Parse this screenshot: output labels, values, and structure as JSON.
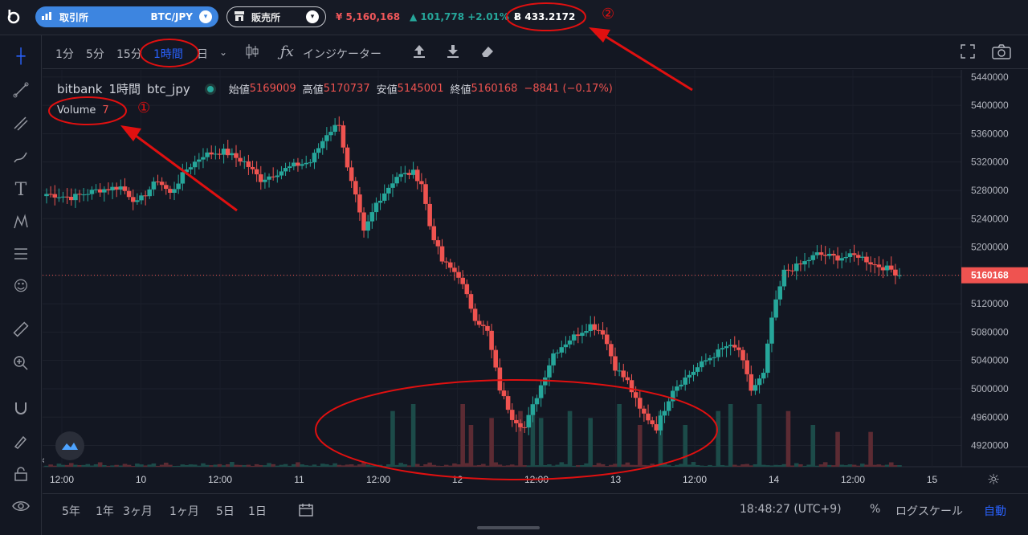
{
  "topbar": {
    "exchange_label": "取引所",
    "pair": "BTC/JPY",
    "shop_label": "販売所",
    "price": "¥ 5,160,168",
    "change": "101,778 +2.01%",
    "btc_balance": "433.2172",
    "btc_symbol": "Ƀ"
  },
  "toolbar": {
    "intervals": [
      "1分",
      "5分",
      "15分",
      "1時間",
      "日"
    ],
    "active_interval": "1時間",
    "indicator_label": "インジケーター"
  },
  "legend": {
    "exchange": "bitbank",
    "interval": "1時間",
    "symbol": "btc_jpy",
    "open_label": "始値",
    "open": "5169009",
    "high_label": "高値",
    "high": "5170737",
    "low_label": "安値",
    "low": "5145001",
    "close_label": "終値",
    "close": "5160168",
    "change": "−8841 (−0.17%)",
    "volume_label": "Volume",
    "volume_value": "7"
  },
  "annotations": {
    "one": "①",
    "two": "②"
  },
  "bottom": {
    "ranges": [
      "5年",
      "1年",
      "3ヶ月",
      "1ヶ月",
      "5日",
      "1日"
    ],
    "time": "18:48:27 (UTC+9)",
    "percent": "%",
    "log_label": "ログスケール",
    "auto_label": "自動"
  },
  "colors": {
    "up": "#26a69a",
    "down": "#ef5350",
    "annotation": "#e01010",
    "accent": "#2962ff"
  },
  "chart_data": {
    "type": "candlestick",
    "ylim": [
      4890000,
      5450000
    ],
    "y_ticks": [
      5440000,
      5400000,
      5360000,
      5320000,
      5280000,
      5240000,
      5200000,
      5160000,
      5120000,
      5080000,
      5040000,
      5000000,
      4960000,
      4920000
    ],
    "x_tick_labels": [
      "12:00",
      "10",
      "12:00",
      "11",
      "12:00",
      "12",
      "12:00",
      "13",
      "12:00",
      "14",
      "12:00",
      "15"
    ],
    "last_price": 5160168,
    "anchors": [
      [
        0,
        5275000
      ],
      [
        6,
        5270000
      ],
      [
        12,
        5280000
      ],
      [
        18,
        5285000
      ],
      [
        22,
        5262000
      ],
      [
        27,
        5295000
      ],
      [
        30,
        5275000
      ],
      [
        34,
        5310000
      ],
      [
        38,
        5330000
      ],
      [
        43,
        5335000
      ],
      [
        48,
        5320000
      ],
      [
        52,
        5295000
      ],
      [
        56,
        5305000
      ],
      [
        60,
        5315000
      ],
      [
        64,
        5320000
      ],
      [
        68,
        5360000
      ],
      [
        71,
        5375000
      ],
      [
        73,
        5310000
      ],
      [
        75,
        5270000
      ],
      [
        77,
        5220000
      ],
      [
        80,
        5262000
      ],
      [
        85,
        5300000
      ],
      [
        89,
        5305000
      ],
      [
        91,
        5290000
      ],
      [
        93,
        5230000
      ],
      [
        96,
        5180000
      ],
      [
        100,
        5160000
      ],
      [
        104,
        5100000
      ],
      [
        107,
        5080000
      ],
      [
        110,
        5000000
      ],
      [
        113,
        4960000
      ],
      [
        116,
        4945000
      ],
      [
        119,
        4990000
      ],
      [
        123,
        5050000
      ],
      [
        127,
        5070000
      ],
      [
        132,
        5090000
      ],
      [
        135,
        5080000
      ],
      [
        138,
        5030000
      ],
      [
        141,
        5010000
      ],
      [
        144,
        4970000
      ],
      [
        148,
        4945000
      ],
      [
        152,
        5000000
      ],
      [
        156,
        5020000
      ],
      [
        160,
        5040000
      ],
      [
        165,
        5060000
      ],
      [
        168,
        5055000
      ],
      [
        171,
        4998000
      ],
      [
        174,
        5020000
      ],
      [
        176,
        5100000
      ],
      [
        179,
        5165000
      ],
      [
        183,
        5175000
      ],
      [
        187,
        5190000
      ],
      [
        192,
        5185000
      ],
      [
        197,
        5188000
      ],
      [
        201,
        5175000
      ],
      [
        205,
        5168000
      ],
      [
        207,
        5160000
      ]
    ],
    "volume_pattern": [
      1,
      2,
      1,
      3,
      2,
      1,
      4,
      2,
      1,
      2,
      3,
      1,
      2,
      5,
      2,
      1
    ],
    "volume_peaks": [
      [
        84,
        8
      ],
      [
        89,
        9
      ],
      [
        101,
        9
      ],
      [
        103,
        6
      ],
      [
        108,
        7
      ],
      [
        115,
        8
      ],
      [
        118,
        9
      ],
      [
        120,
        7
      ],
      [
        127,
        8
      ],
      [
        132,
        7
      ],
      [
        139,
        9
      ],
      [
        144,
        6
      ],
      [
        149,
        8
      ],
      [
        155,
        6
      ],
      [
        163,
        8
      ],
      [
        166,
        9
      ],
      [
        173,
        9
      ],
      [
        180,
        8
      ],
      [
        186,
        6
      ],
      [
        192,
        5
      ],
      [
        200,
        5
      ]
    ]
  }
}
